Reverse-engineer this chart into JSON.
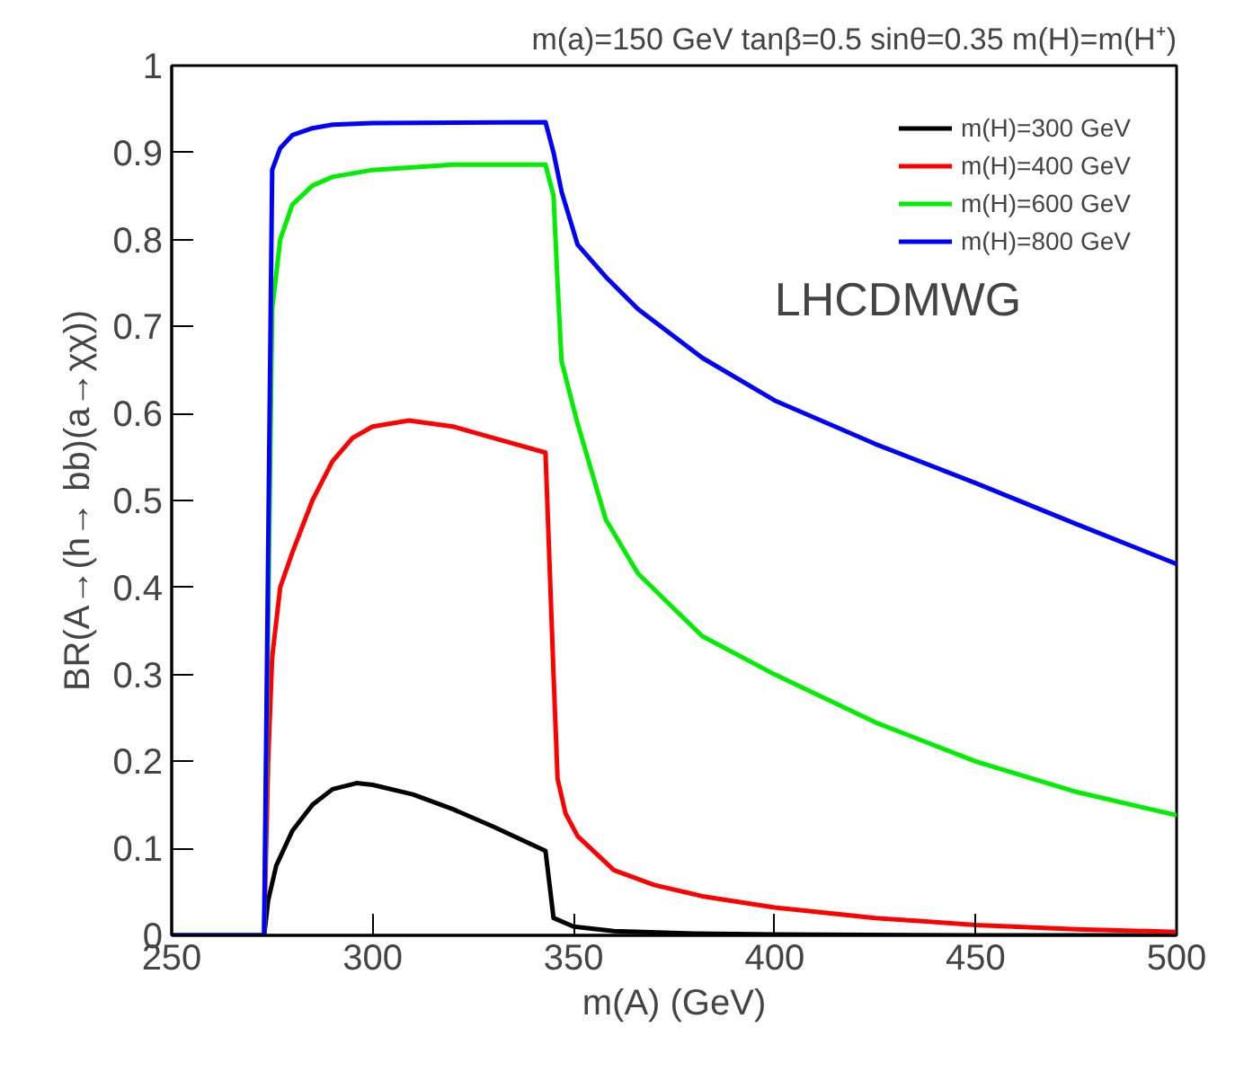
{
  "chart_data": {
    "type": "line",
    "title": "m(a)=150 GeV tanβ=0.5 sinθ=0.35 m(H)=m(H⁺)",
    "xlabel": "m(A) (GeV)",
    "ylabel": "BR(A→(h→ bb)(a→χχ))",
    "annotations": [
      "LHCDMWG"
    ],
    "xlim": [
      250,
      500
    ],
    "ylim": [
      0,
      1
    ],
    "xticks": [
      250,
      300,
      350,
      400,
      450,
      500
    ],
    "yticks": [
      0,
      {
        "value": 0.1,
        "label": "0.1"
      },
      {
        "value": 0.2,
        "label": "0.2"
      },
      {
        "value": 0.3,
        "label": "0.3"
      },
      {
        "value": 0.4,
        "label": "0.4"
      },
      {
        "value": 0.5,
        "label": "0.5"
      },
      {
        "value": 0.6,
        "label": "0.6"
      },
      {
        "value": 0.7,
        "label": "0.7"
      },
      {
        "value": 0.8,
        "label": "0.8"
      },
      {
        "value": 0.9,
        "label": "0.9"
      },
      1
    ],
    "grid": false,
    "legend": "top right",
    "line_style": "solid",
    "marker": "none",
    "series": [
      {
        "name": "m(H)=300 GeV",
        "color": "#000000",
        "x": [
          250,
          273,
          274,
          276,
          280,
          285,
          290,
          296,
          300,
          310,
          320,
          330,
          343,
          345,
          350,
          360,
          380,
          400,
          450,
          500
        ],
        "values": [
          0,
          0,
          0.04,
          0.08,
          0.12,
          0.15,
          0.168,
          0.175,
          0.173,
          0.162,
          0.145,
          0.125,
          0.097,
          0.02,
          0.01,
          0.005,
          0.002,
          0.001,
          0,
          0
        ]
      },
      {
        "name": "m(H)=400 GeV",
        "color": "#ff0000",
        "x": [
          250,
          273,
          274,
          275,
          277,
          280,
          285,
          290,
          295,
          300,
          309,
          320,
          330,
          343,
          345,
          346,
          348,
          351,
          360,
          370,
          382,
          400,
          425,
          450,
          475,
          500
        ],
        "values": [
          0,
          0,
          0.2,
          0.32,
          0.4,
          0.44,
          0.5,
          0.545,
          0.572,
          0.585,
          0.592,
          0.585,
          0.572,
          0.555,
          0.3,
          0.18,
          0.14,
          0.114,
          0.075,
          0.058,
          0.045,
          0.032,
          0.02,
          0.012,
          0.007,
          0.004
        ]
      },
      {
        "name": "m(H)=600 GeV",
        "color": "#00ee00",
        "x": [
          250,
          273,
          275,
          277,
          280,
          285,
          290,
          300,
          320,
          343,
          345,
          346,
          347,
          351,
          358,
          366,
          382,
          400,
          425,
          450,
          475,
          500
        ],
        "values": [
          0,
          0,
          0.72,
          0.8,
          0.84,
          0.862,
          0.872,
          0.88,
          0.886,
          0.886,
          0.85,
          0.75,
          0.66,
          0.588,
          0.478,
          0.416,
          0.344,
          0.3,
          0.245,
          0.2,
          0.165,
          0.138
        ]
      },
      {
        "name": "m(H)=800 GeV",
        "color": "#0000ff",
        "x": [
          250,
          273,
          275,
          277,
          280,
          285,
          290,
          300,
          343,
          345,
          347,
          351,
          358,
          366,
          382,
          400,
          425,
          450,
          475,
          500
        ],
        "values": [
          0,
          0,
          0.88,
          0.905,
          0.92,
          0.928,
          0.932,
          0.934,
          0.935,
          0.9,
          0.855,
          0.794,
          0.757,
          0.72,
          0.664,
          0.615,
          0.565,
          0.52,
          0.473,
          0.427
        ]
      }
    ]
  }
}
